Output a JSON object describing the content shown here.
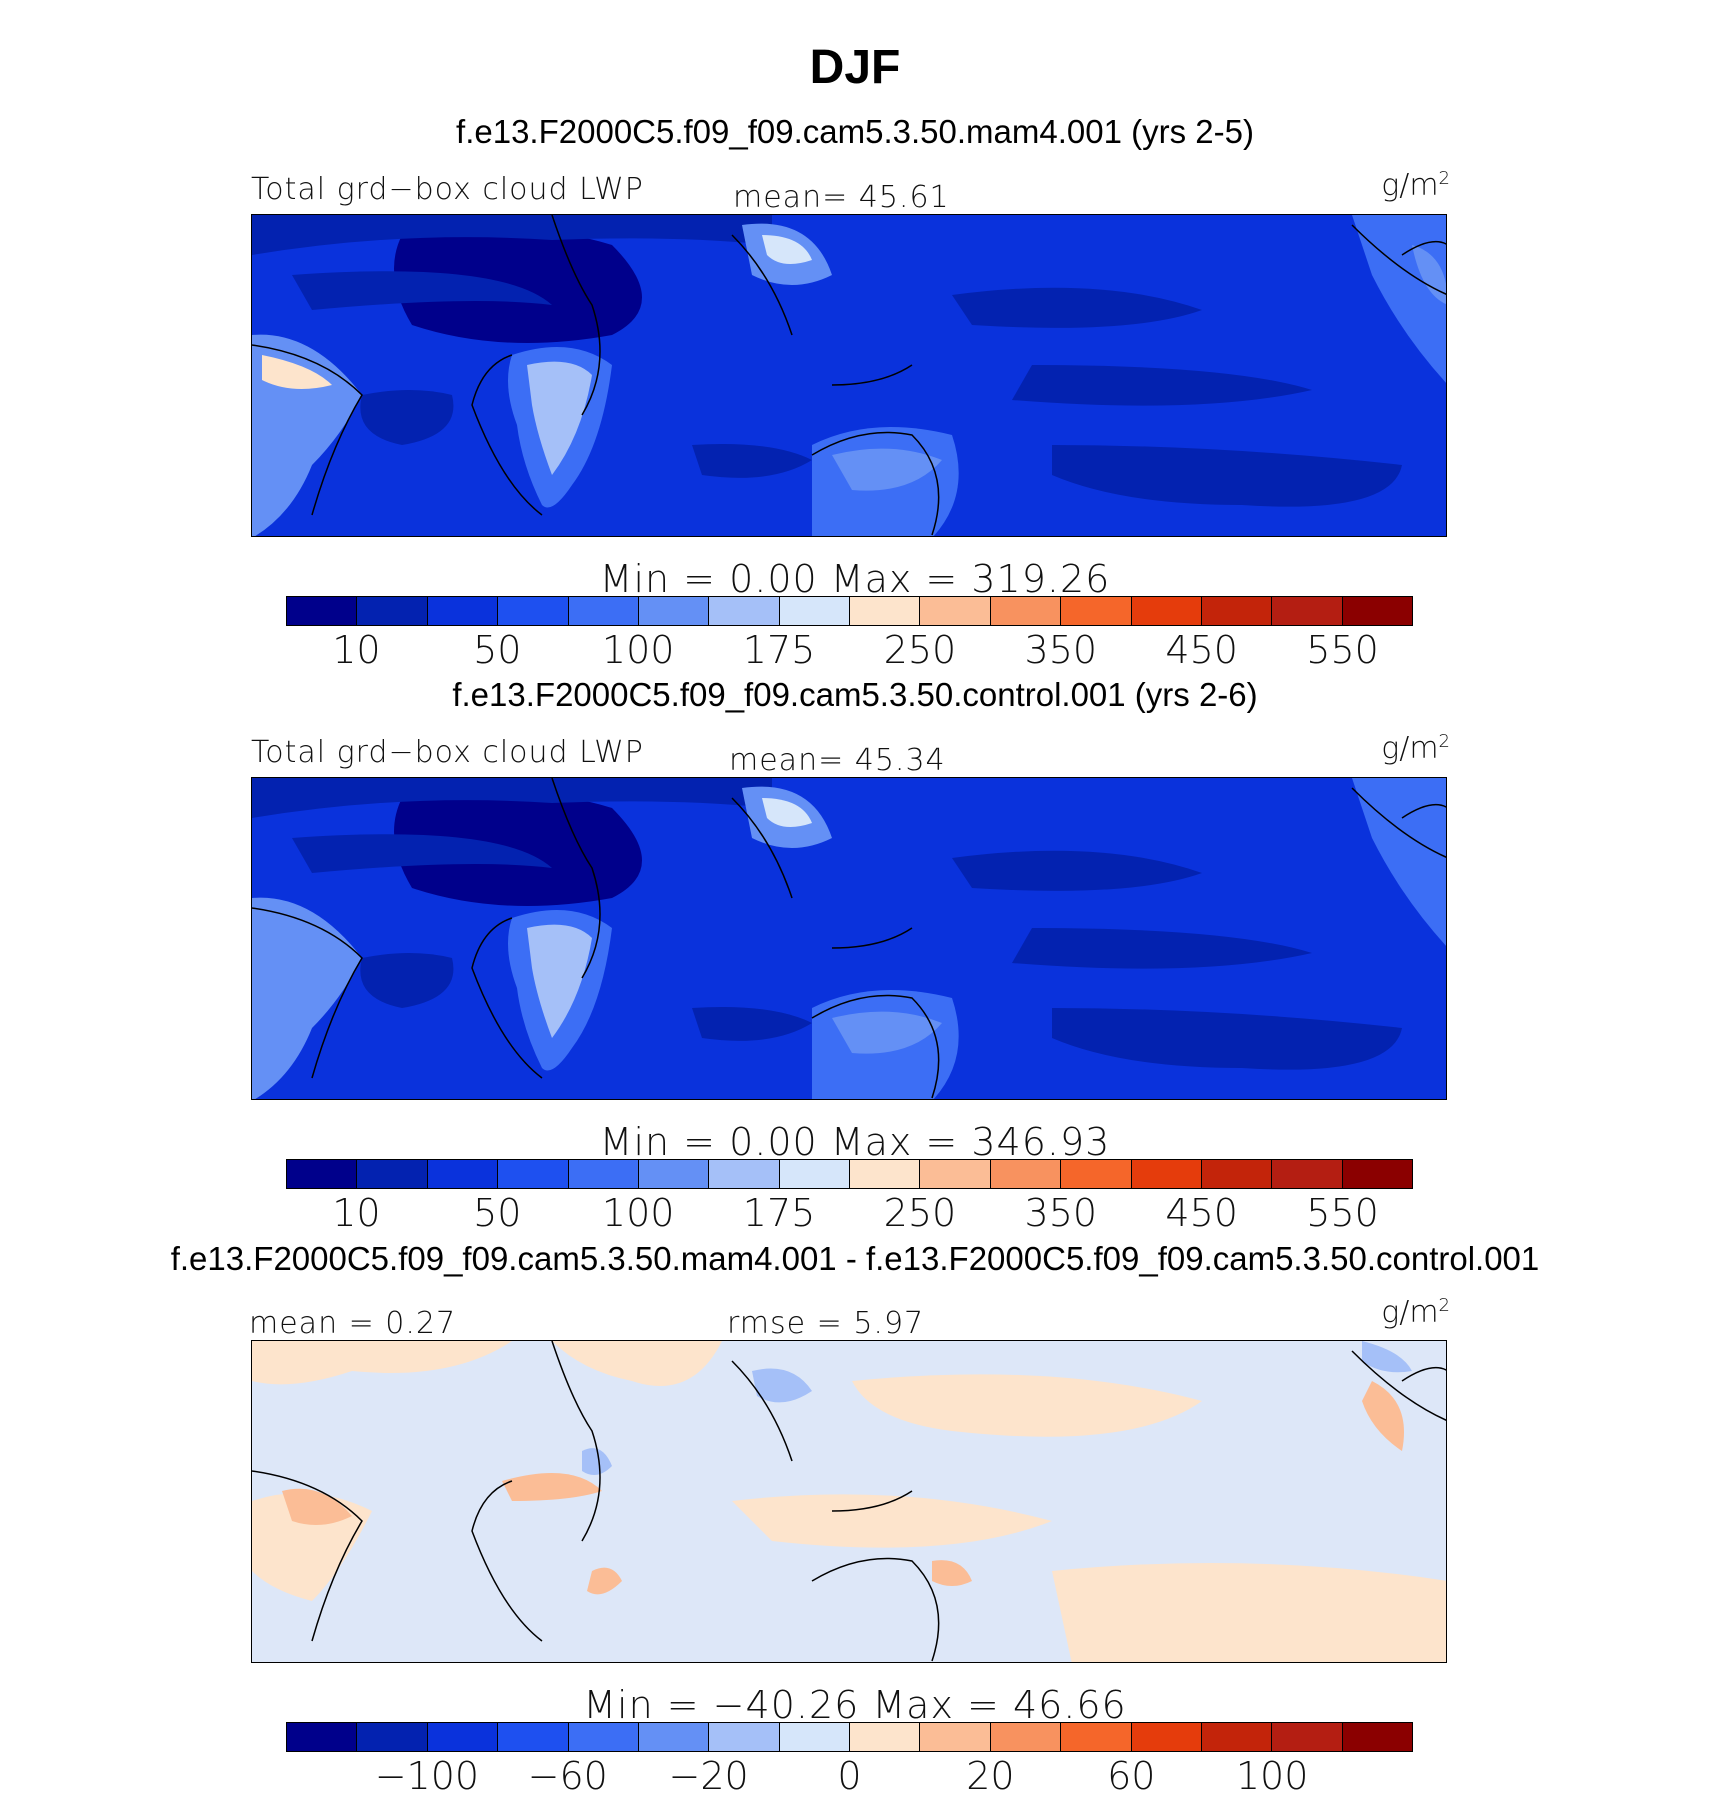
{
  "figure": {
    "title": "DJF"
  },
  "panels": [
    {
      "header": "f.e13.F2000C5.f09_f09.cam5.3.50.mam4.001 (yrs 2-5)",
      "left_label": "Total grd−box cloud LWP",
      "center_label": "mean=  45.61",
      "units": "g/m",
      "units_sup": "2",
      "minmax": "Min =    0.00  Max = 319.26",
      "colorbar": "abs",
      "fill": "#0a32dc"
    },
    {
      "header": "f.e13.F2000C5.f09_f09.cam5.3.50.control.001 (yrs 2-6)",
      "left_label": "Total grd−box cloud LWP",
      "center_label": "mean=  45.34",
      "units": "g/m",
      "units_sup": "2",
      "minmax": "Min =    0.00  Max = 346.93",
      "colorbar": "abs",
      "fill": "#0a32dc"
    },
    {
      "header": "f.e13.F2000C5.f09_f09.cam5.3.50.mam4.001 - f.e13.F2000C5.f09_f09.cam5.3.50.control.001",
      "left_label": "mean =   0.27",
      "center_label": "rmse =   5.97",
      "units": "g/m",
      "units_sup": "2",
      "minmax": "Min = −40.26  Max =  46.66",
      "colorbar": "diff",
      "fill": "#dde7f8"
    }
  ],
  "colorbars": {
    "abs": {
      "colors": [
        "#00008b",
        "#0322b0",
        "#0a32dc",
        "#1e50f0",
        "#3c6ef5",
        "#6490f5",
        "#a5c0f8",
        "#d6e6fa",
        "#fde4cc",
        "#fbbd96",
        "#f8925f",
        "#f5662a",
        "#e53c0c",
        "#c3240a",
        "#b41e12",
        "#8b0000"
      ],
      "ticks": [
        "10",
        "50",
        "100",
        "175",
        "250",
        "350",
        "450",
        "550"
      ]
    },
    "diff": {
      "colors": [
        "#00008b",
        "#0322b0",
        "#0a32dc",
        "#1e50f0",
        "#3c6ef5",
        "#6490f5",
        "#a5c0f8",
        "#d6e6fa",
        "#fde4cc",
        "#fbbd96",
        "#f8925f",
        "#f5662a",
        "#e53c0c",
        "#c3240a",
        "#b41e12",
        "#8b0000"
      ],
      "ticks": [
        "−100",
        "−60",
        "−20",
        "0",
        "20",
        "60",
        "100"
      ]
    }
  }
}
